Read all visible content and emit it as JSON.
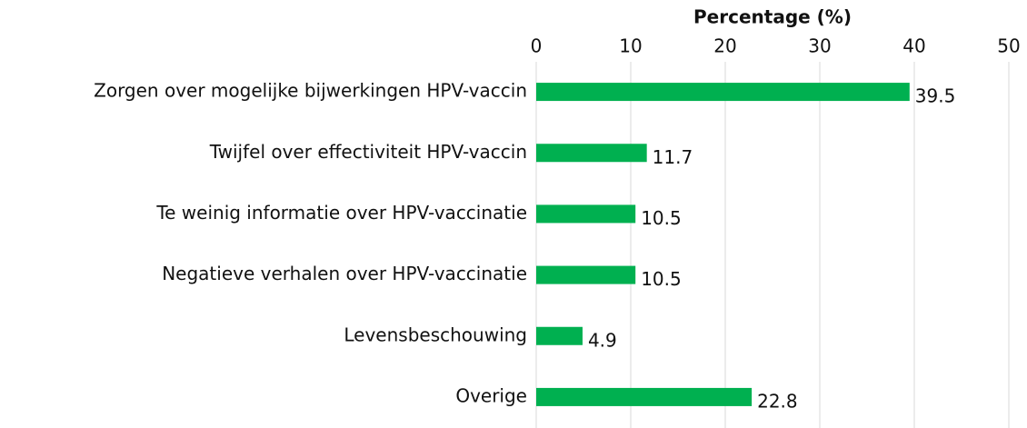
{
  "chart_data": {
    "type": "bar",
    "orientation": "horizontal",
    "xlabel": "Percentage (%)",
    "categories": [
      "Zorgen over mogelijke bijwerkingen HPV-vaccin",
      "Twijfel over effectiviteit HPV-vaccin",
      "Te weinig informatie over HPV-vaccinatie",
      "Negatieve verhalen over HPV-vaccinatie",
      "Levensbeschouwing",
      "Overige"
    ],
    "values": [
      39.5,
      11.7,
      10.5,
      10.5,
      4.9,
      22.8
    ],
    "color": "#00b050",
    "xlim": [
      0,
      50
    ],
    "xticks": [
      0,
      10,
      20,
      30,
      40,
      50
    ],
    "grid": true
  }
}
